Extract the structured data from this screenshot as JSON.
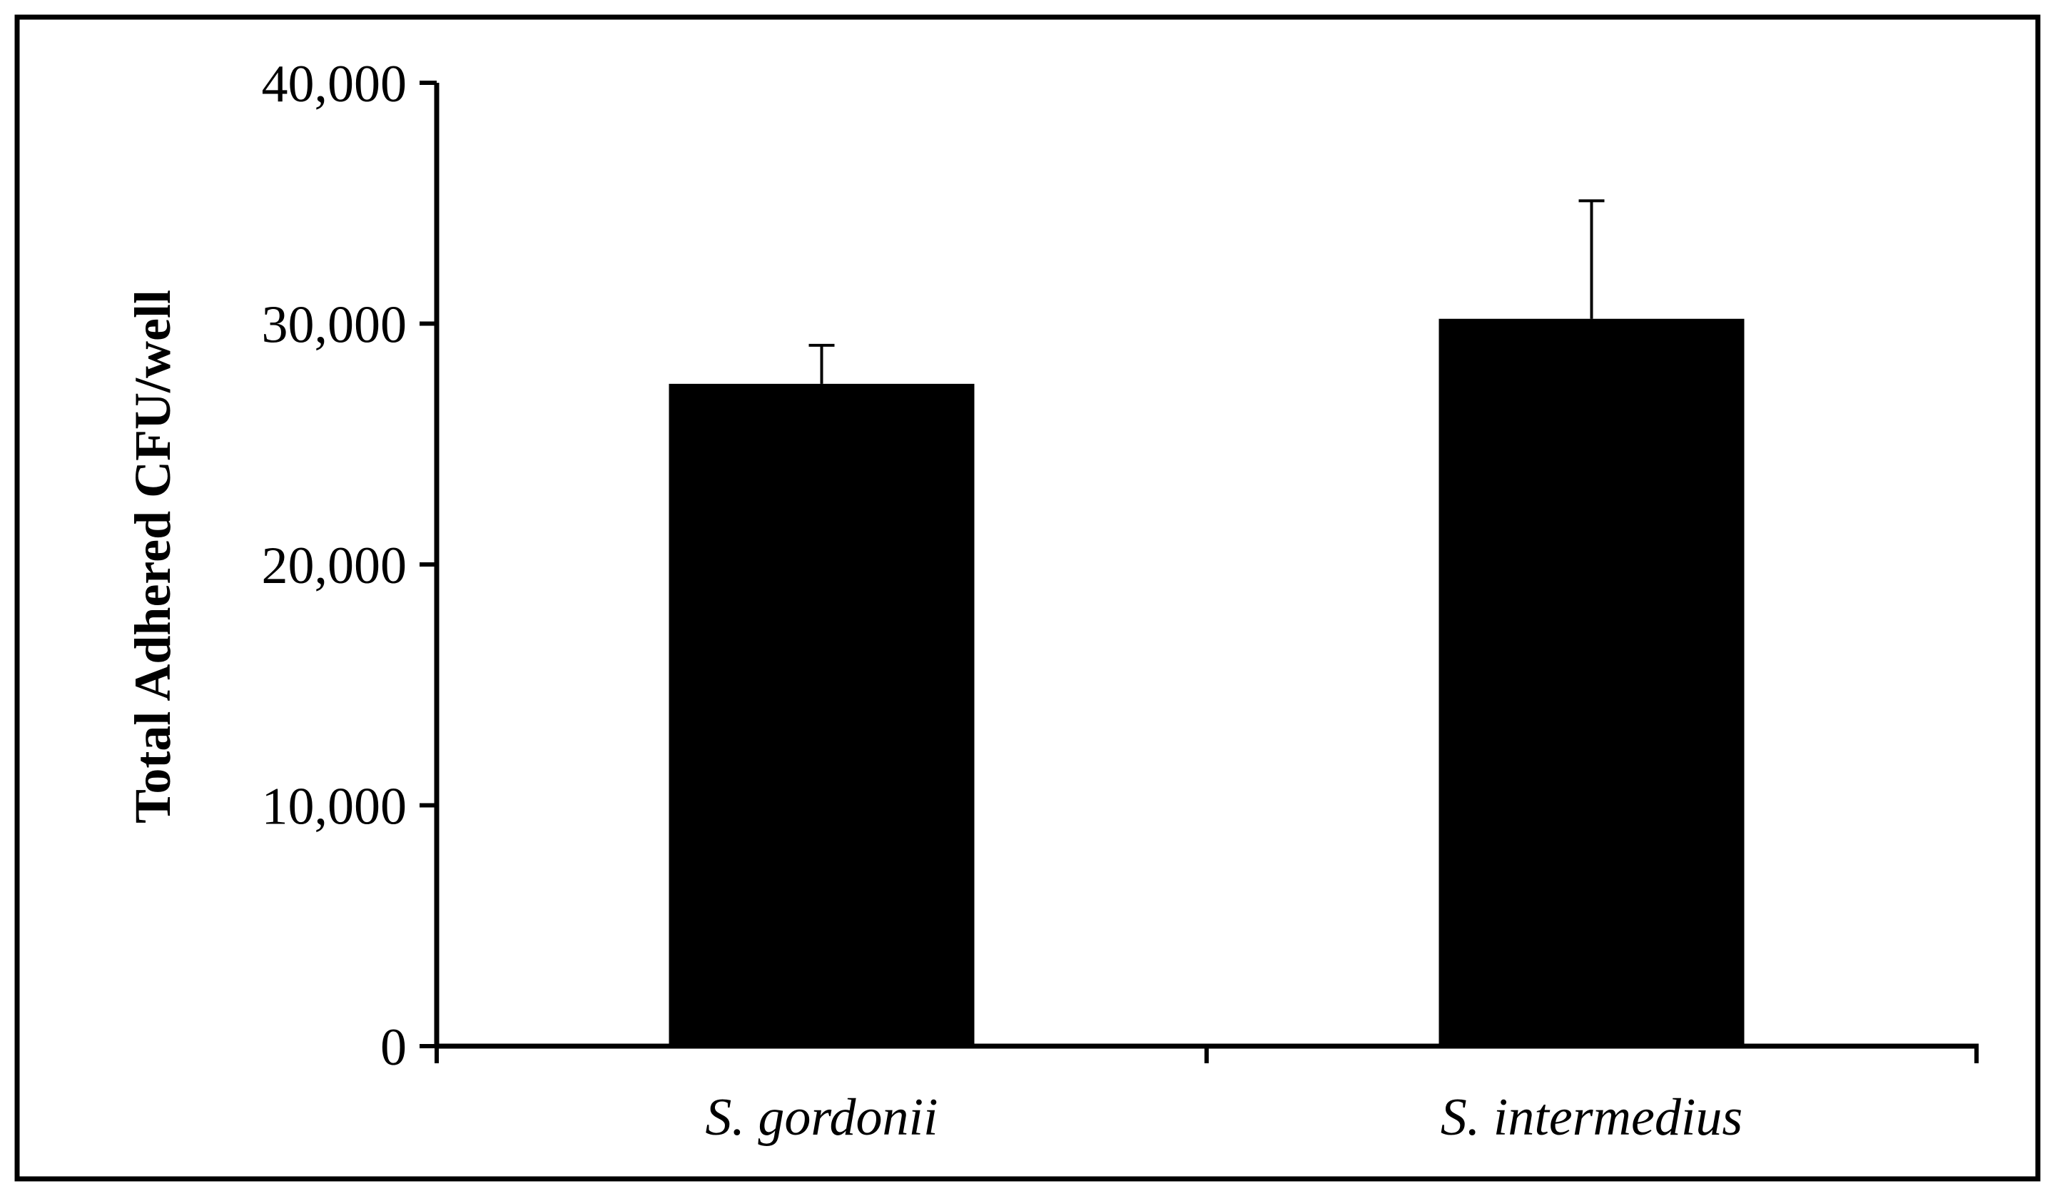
{
  "chart_data": {
    "type": "bar",
    "title": "",
    "xlabel": "",
    "ylabel": "Total Adhered CFU/well",
    "categories": [
      "S. gordonii",
      "S. intermedius"
    ],
    "values": [
      27500,
      30200
    ],
    "error_bars": [
      1600,
      4900
    ],
    "ylim": [
      0,
      40000
    ],
    "yticks": [
      0,
      10000,
      20000,
      30000,
      40000
    ],
    "ytick_labels": [
      "0",
      "10,000",
      "20,000",
      "30,000",
      "40,000"
    ],
    "grid": false,
    "legend": "none",
    "bar_color": "#000000",
    "frame": true
  }
}
